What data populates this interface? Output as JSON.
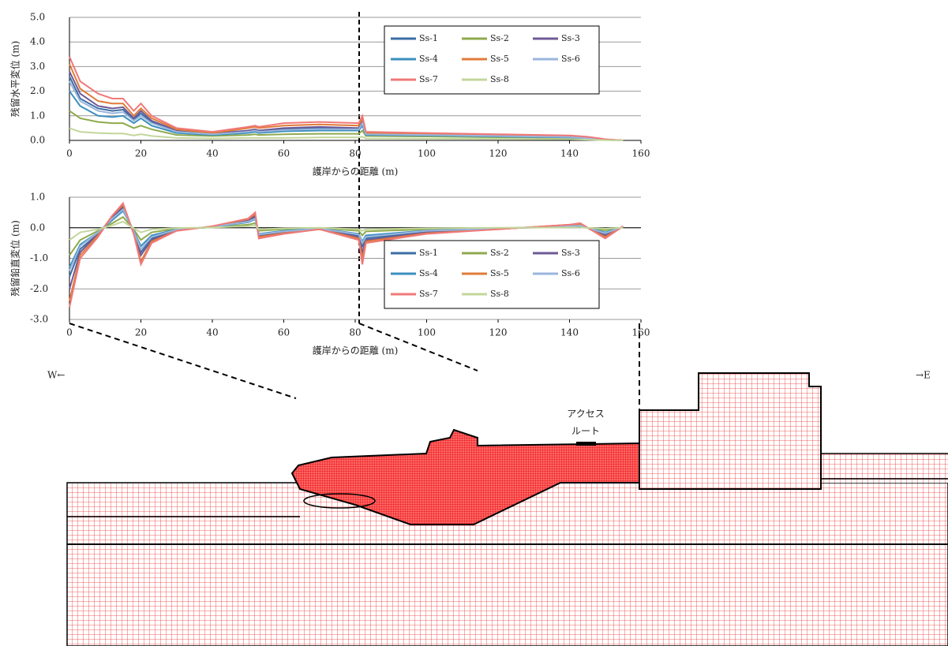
{
  "chart_data": [
    {
      "type": "line",
      "x_label": "護岸からの距離 (m)",
      "y_label": "残留水平変位 (m)",
      "x": [
        0,
        3,
        8,
        12,
        15,
        18,
        20,
        23,
        30,
        40,
        50,
        52,
        53,
        60,
        70,
        81,
        82,
        83,
        100,
        120,
        140,
        145,
        150,
        155
      ],
      "xlim": [
        0,
        160
      ],
      "xticks": [
        0,
        20,
        40,
        60,
        80,
        100,
        120,
        140,
        160
      ],
      "ylim": [
        0,
        5
      ],
      "yticks": [
        {
          "value": 0,
          "label": "0.0"
        },
        {
          "value": 1,
          "label": "1.0"
        },
        {
          "value": 2,
          "label": "2.0"
        },
        {
          "value": 3,
          "label": "3.0"
        },
        {
          "value": 4,
          "label": "4.0"
        },
        {
          "value": 5,
          "label": "5.0"
        }
      ],
      "grid": true,
      "series": [
        {
          "name": "Ss-1",
          "color": "#3a6ea5",
          "values": [
            2.6,
            1.7,
            1.3,
            1.2,
            1.25,
            0.85,
            1.1,
            0.75,
            0.38,
            0.27,
            0.38,
            0.42,
            0.38,
            0.45,
            0.5,
            0.48,
            0.75,
            0.27,
            0.24,
            0.19,
            0.15,
            0.1,
            0.03,
            0
          ]
        },
        {
          "name": "Ss-2",
          "color": "#8faa4c",
          "values": [
            1.2,
            0.9,
            0.75,
            0.7,
            0.7,
            0.5,
            0.6,
            0.45,
            0.22,
            0.18,
            0.22,
            0.25,
            0.22,
            0.25,
            0.27,
            0.27,
            0.4,
            0.18,
            0.16,
            0.13,
            0.1,
            0.06,
            0.02,
            0
          ]
        },
        {
          "name": "Ss-3",
          "color": "#6e5a96",
          "values": [
            2.8,
            1.9,
            1.4,
            1.3,
            1.35,
            0.9,
            1.2,
            0.8,
            0.4,
            0.28,
            0.4,
            0.45,
            0.4,
            0.5,
            0.55,
            0.5,
            0.8,
            0.28,
            0.25,
            0.2,
            0.16,
            0.1,
            0.03,
            0
          ]
        },
        {
          "name": "Ss-4",
          "color": "#3b8fbf",
          "values": [
            2.0,
            1.4,
            1.0,
            0.95,
            1.0,
            0.7,
            0.9,
            0.6,
            0.3,
            0.22,
            0.3,
            0.35,
            0.3,
            0.37,
            0.4,
            0.4,
            0.6,
            0.22,
            0.2,
            0.16,
            0.12,
            0.08,
            0.02,
            0
          ]
        },
        {
          "name": "Ss-5",
          "color": "#e07b39",
          "values": [
            3.1,
            2.1,
            1.6,
            1.5,
            1.5,
            1.0,
            1.3,
            0.9,
            0.45,
            0.3,
            0.5,
            0.55,
            0.5,
            0.6,
            0.65,
            0.6,
            0.9,
            0.3,
            0.28,
            0.22,
            0.18,
            0.12,
            0.04,
            0
          ]
        },
        {
          "name": "Ss-6",
          "color": "#9ab6dc",
          "values": [
            2.4,
            1.6,
            1.2,
            1.1,
            1.15,
            0.8,
            1.0,
            0.7,
            0.35,
            0.25,
            0.35,
            0.4,
            0.35,
            0.42,
            0.46,
            0.45,
            0.7,
            0.25,
            0.22,
            0.18,
            0.14,
            0.09,
            0.03,
            0
          ]
        },
        {
          "name": "Ss-7",
          "color": "#f07878",
          "values": [
            3.4,
            2.4,
            1.9,
            1.7,
            1.7,
            1.2,
            1.5,
            1.0,
            0.5,
            0.35,
            0.55,
            0.6,
            0.55,
            0.7,
            0.75,
            0.7,
            1.0,
            0.35,
            0.3,
            0.25,
            0.2,
            0.15,
            0.05,
            0
          ]
        },
        {
          "name": "Ss-8",
          "color": "#c3d69b",
          "values": [
            0.5,
            0.35,
            0.3,
            0.28,
            0.28,
            0.2,
            0.25,
            0.18,
            0.1,
            0.08,
            0.1,
            0.1,
            0.1,
            0.1,
            0.12,
            0.12,
            0.15,
            0.08,
            0.07,
            0.06,
            0.05,
            0.03,
            0.01,
            0
          ]
        }
      ]
    },
    {
      "type": "line",
      "x_label": "護岸からの距離 (m)",
      "y_label": "残留鉛直変位 (m)",
      "x": [
        0,
        3,
        8,
        12,
        15,
        18,
        20,
        23,
        30,
        40,
        50,
        52,
        53,
        60,
        70,
        81,
        82,
        83,
        100,
        120,
        140,
        143,
        150,
        155
      ],
      "xlim": [
        0,
        160
      ],
      "xticks": [
        0,
        20,
        40,
        60,
        80,
        100,
        120,
        140,
        160
      ],
      "ylim": [
        -3,
        1
      ],
      "yticks": [
        {
          "value": -3,
          "label": "-3.0"
        },
        {
          "value": -2,
          "label": "-2.0"
        },
        {
          "value": -1,
          "label": "-1.0"
        },
        {
          "value": 0,
          "label": "0.0"
        },
        {
          "value": 1,
          "label": "1.0"
        }
      ],
      "grid": true,
      "series": [
        {
          "name": "Ss-1",
          "color": "#3a6ea5",
          "values": [
            -1.6,
            -0.7,
            -0.2,
            0.3,
            0.65,
            -0.15,
            -0.8,
            -0.35,
            -0.07,
            0.03,
            0.22,
            0.35,
            -0.25,
            -0.13,
            -0.03,
            -0.25,
            -0.6,
            -0.35,
            -0.12,
            -0.03,
            0.06,
            0.08,
            -0.2,
            0.03
          ]
        },
        {
          "name": "Ss-2",
          "color": "#8faa4c",
          "values": [
            -0.9,
            -0.4,
            -0.1,
            0.15,
            0.35,
            -0.05,
            -0.4,
            -0.15,
            -0.03,
            0.01,
            0.1,
            0.15,
            -0.1,
            -0.05,
            -0.01,
            -0.1,
            -0.25,
            -0.12,
            -0.05,
            -0.01,
            0.02,
            0.03,
            -0.08,
            0.01
          ]
        },
        {
          "name": "Ss-3",
          "color": "#6e5a96",
          "values": [
            -2.0,
            -0.8,
            -0.2,
            0.35,
            0.7,
            -0.15,
            -0.9,
            -0.4,
            -0.08,
            0.04,
            0.25,
            0.4,
            -0.28,
            -0.15,
            -0.04,
            -0.3,
            -0.8,
            -0.4,
            -0.15,
            -0.04,
            0.08,
            0.1,
            -0.25,
            0.04
          ]
        },
        {
          "name": "Ss-4",
          "color": "#3b8fbf",
          "values": [
            -1.3,
            -0.55,
            -0.15,
            0.25,
            0.55,
            -0.1,
            -0.6,
            -0.25,
            -0.05,
            0.02,
            0.18,
            0.28,
            -0.2,
            -0.1,
            -0.02,
            -0.2,
            -0.45,
            -0.25,
            -0.09,
            -0.02,
            0.04,
            0.06,
            -0.15,
            0.02
          ]
        },
        {
          "name": "Ss-5",
          "color": "#e07b39",
          "values": [
            -2.4,
            -0.9,
            -0.25,
            0.4,
            0.75,
            -0.2,
            -1.1,
            -0.45,
            -0.1,
            0.05,
            0.28,
            0.45,
            -0.3,
            -0.18,
            -0.05,
            -0.35,
            -1.0,
            -0.45,
            -0.18,
            -0.05,
            0.1,
            0.12,
            -0.3,
            0.05
          ]
        },
        {
          "name": "Ss-6",
          "color": "#9ab6dc",
          "values": [
            -1.4,
            -0.6,
            -0.15,
            0.3,
            0.6,
            -0.12,
            -0.7,
            -0.3,
            -0.06,
            0.03,
            0.2,
            0.3,
            -0.22,
            -0.12,
            -0.03,
            -0.22,
            -0.5,
            -0.3,
            -0.1,
            -0.03,
            0.05,
            0.07,
            -0.18,
            0.03
          ]
        },
        {
          "name": "Ss-7",
          "color": "#f07878",
          "values": [
            -2.6,
            -1.0,
            -0.3,
            0.4,
            0.8,
            -0.2,
            -1.2,
            -0.5,
            -0.1,
            0.05,
            0.3,
            0.5,
            -0.35,
            -0.2,
            -0.05,
            -0.4,
            -1.2,
            -0.5,
            -0.2,
            -0.05,
            0.1,
            0.15,
            -0.35,
            0.05
          ]
        },
        {
          "name": "Ss-8",
          "color": "#c3d69b",
          "values": [
            -0.4,
            -0.15,
            -0.05,
            0.08,
            0.2,
            -0.02,
            -0.15,
            -0.05,
            -0.01,
            0.01,
            0.05,
            0.08,
            -0.05,
            -0.02,
            0,
            -0.05,
            -0.1,
            -0.05,
            -0.02,
            0,
            0.01,
            0.01,
            -0.03,
            0
          ]
        }
      ]
    }
  ],
  "diagram": {
    "west": "W←",
    "east": "→E",
    "access_route": [
      "アクセス",
      "ルート"
    ]
  }
}
